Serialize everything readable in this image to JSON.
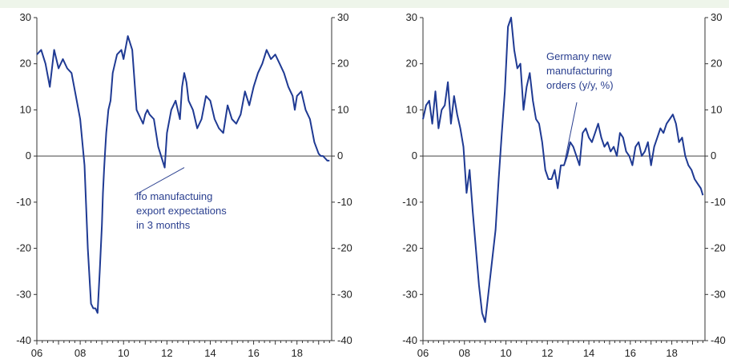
{
  "chart_data": [
    {
      "type": "line",
      "title": "",
      "xlabel": "",
      "ylabel": "",
      "xlim": [
        2006,
        2019.6
      ],
      "ylim": [
        -40,
        30
      ],
      "x_ticks": [
        "06",
        "08",
        "10",
        "12",
        "14",
        "16",
        "18"
      ],
      "y_ticks": [
        "30",
        "20",
        "10",
        "0",
        "-10",
        "-20",
        "-30",
        "-40"
      ],
      "annotation": {
        "lines": [
          "ifo manufactuing",
          "export expectations",
          "in 3 months"
        ],
        "anchor": [
          2012.8,
          -2.5
        ]
      },
      "color": "#1f3a93",
      "series": [
        {
          "x": [
            2006.0,
            2006.2,
            2006.4,
            2006.6,
            2006.8,
            2007.0,
            2007.2,
            2007.4,
            2007.6,
            2007.8,
            2008.0,
            2008.2,
            2008.35,
            2008.5,
            2008.6,
            2008.7,
            2008.8,
            2008.9,
            2009.0,
            2009.05,
            2009.1,
            2009.15,
            2009.2,
            2009.3,
            2009.4,
            2009.5,
            2009.7,
            2009.9,
            2010.0,
            2010.2,
            2010.4,
            2010.6,
            2010.8,
            2010.9,
            2011.0,
            2011.1,
            2011.2,
            2011.4,
            2011.6,
            2011.8,
            2011.9,
            2012.0,
            2012.2,
            2012.4,
            2012.6,
            2012.7,
            2012.8,
            2012.9,
            2013.0,
            2013.2,
            2013.4,
            2013.6,
            2013.8,
            2014.0,
            2014.2,
            2014.4,
            2014.6,
            2014.8,
            2015.0,
            2015.2,
            2015.4,
            2015.6,
            2015.8,
            2016.0,
            2016.2,
            2016.4,
            2016.6,
            2016.8,
            2017.0,
            2017.2,
            2017.4,
            2017.6,
            2017.8,
            2017.9,
            2018.0,
            2018.2,
            2018.4,
            2018.6,
            2018.8,
            2019.0,
            2019.1,
            2019.2,
            2019.3,
            2019.4,
            2019.5
          ],
          "values": [
            22,
            23,
            20,
            15,
            23,
            19,
            21,
            19,
            18,
            13,
            8,
            -2,
            -20,
            -32,
            -33,
            -33,
            -34,
            -25,
            -15,
            -8,
            -3,
            1,
            5,
            10,
            12,
            18,
            22,
            23,
            21,
            26,
            23,
            10,
            8,
            7,
            9,
            10,
            9,
            8,
            2,
            -1,
            -2.5,
            5,
            10,
            12,
            8,
            15,
            18,
            16,
            12,
            10,
            6,
            8,
            13,
            12,
            8,
            6,
            5,
            11,
            8,
            7,
            9,
            14,
            11,
            15,
            18,
            20,
            23,
            21,
            22,
            20,
            18,
            15,
            13,
            10,
            13,
            14,
            10,
            8,
            3,
            0.5,
            0,
            0,
            -0.5,
            -1,
            -1
          ],
          "name": ""
        }
      ]
    },
    {
      "type": "line",
      "title": "",
      "xlabel": "",
      "ylabel": "",
      "xlim": [
        2006,
        2019.6
      ],
      "ylim": [
        -40,
        30
      ],
      "x_ticks": [
        "06",
        "08",
        "10",
        "12",
        "14",
        "16",
        "18"
      ],
      "y_ticks": [
        "30",
        "20",
        "10",
        "0",
        "-10",
        "-20",
        "-30",
        "-40"
      ],
      "annotation": {
        "lines": [
          "Germany new",
          "manufacturing",
          "orders (y/y, %)"
        ],
        "anchor": [
          2012.8,
          -2
        ]
      },
      "color": "#1f3a93",
      "series": [
        {
          "x": [
            2006.0,
            2006.15,
            2006.3,
            2006.45,
            2006.6,
            2006.75,
            2006.9,
            2007.05,
            2007.2,
            2007.35,
            2007.5,
            2007.65,
            2007.8,
            2007.95,
            2008.1,
            2008.25,
            2008.4,
            2008.55,
            2008.7,
            2008.85,
            2009.0,
            2009.1,
            2009.2,
            2009.35,
            2009.5,
            2009.65,
            2009.8,
            2009.95,
            2010.1,
            2010.25,
            2010.4,
            2010.55,
            2010.7,
            2010.85,
            2011.0,
            2011.15,
            2011.3,
            2011.45,
            2011.6,
            2011.75,
            2011.9,
            2012.05,
            2012.2,
            2012.35,
            2012.5,
            2012.65,
            2012.8,
            2012.95,
            2013.1,
            2013.25,
            2013.4,
            2013.55,
            2013.7,
            2013.85,
            2014.0,
            2014.15,
            2014.3,
            2014.45,
            2014.6,
            2014.75,
            2014.9,
            2015.05,
            2015.2,
            2015.35,
            2015.5,
            2015.65,
            2015.8,
            2015.95,
            2016.1,
            2016.25,
            2016.4,
            2016.55,
            2016.7,
            2016.85,
            2017.0,
            2017.15,
            2017.3,
            2017.45,
            2017.6,
            2017.75,
            2017.9,
            2018.05,
            2018.2,
            2018.35,
            2018.5,
            2018.65,
            2018.8,
            2018.95,
            2019.1,
            2019.25,
            2019.4,
            2019.5
          ],
          "values": [
            8,
            11,
            12,
            7,
            14,
            6,
            10,
            11,
            16,
            7,
            13,
            9,
            6,
            2,
            -8,
            -3,
            -12,
            -20,
            -28,
            -34,
            -36,
            -32,
            -28,
            -22,
            -16,
            -5,
            5,
            14,
            28,
            30,
            23,
            19,
            20,
            10,
            15,
            18,
            12,
            8,
            7,
            3,
            -3,
            -5,
            -5,
            -3,
            -7,
            -2,
            -2,
            0,
            3,
            2,
            0,
            -2,
            5,
            6,
            4,
            3,
            5,
            7,
            4,
            2,
            3,
            1,
            2,
            0,
            5,
            4,
            1,
            0,
            -2,
            2,
            3,
            0,
            1,
            3,
            -2,
            2,
            4,
            6,
            5,
            7,
            8,
            9,
            7,
            3,
            4,
            0,
            -2,
            -3,
            -5,
            -6,
            -7,
            -8.5
          ],
          "name": ""
        }
      ]
    }
  ]
}
